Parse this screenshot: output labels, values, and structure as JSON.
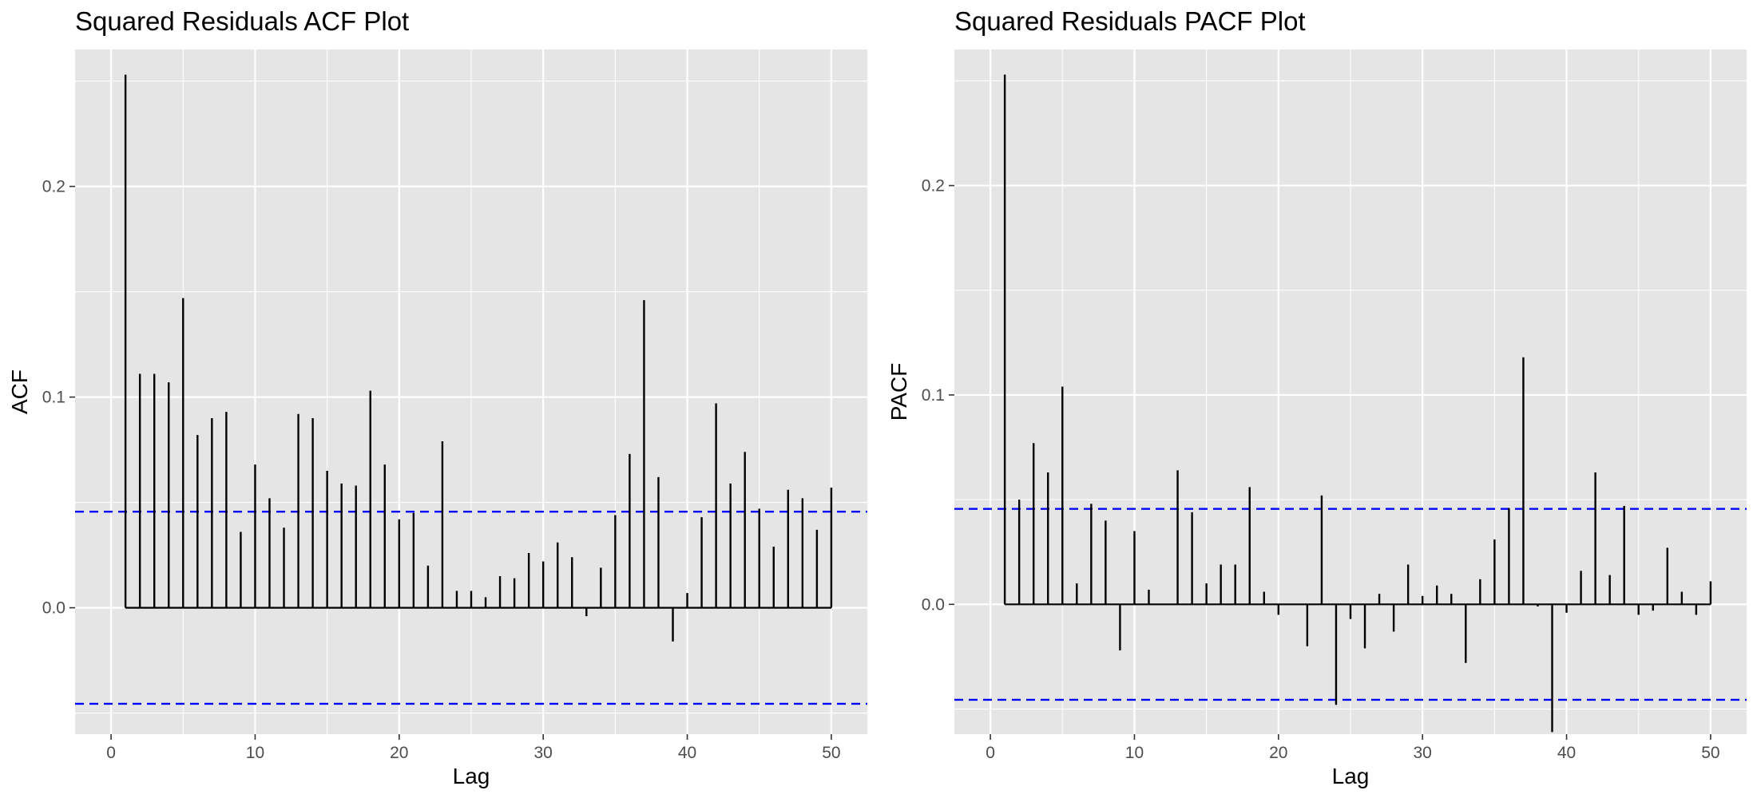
{
  "chart_data": [
    {
      "type": "bar",
      "title": "Squared Residuals ACF Plot",
      "xlabel": "Lag",
      "ylabel": "ACF",
      "xlim": [
        -2.5,
        52.5
      ],
      "ylim": [
        -0.06,
        0.265
      ],
      "xticks": [
        0,
        10,
        20,
        30,
        40,
        50
      ],
      "xtick_labels": [
        "0",
        "10",
        "20",
        "30",
        "40",
        "50"
      ],
      "yticks": [
        0.0,
        0.1,
        0.2
      ],
      "ytick_labels": [
        "0.0",
        "0.1",
        "0.2"
      ],
      "grid": true,
      "confidence_bound": 0.0456,
      "ci_color": "#0000ff",
      "bar_color": "#000000",
      "x": [
        1,
        2,
        3,
        4,
        5,
        6,
        7,
        8,
        9,
        10,
        11,
        12,
        13,
        14,
        15,
        16,
        17,
        18,
        19,
        20,
        21,
        22,
        23,
        24,
        25,
        26,
        27,
        28,
        29,
        30,
        31,
        32,
        33,
        34,
        35,
        36,
        37,
        38,
        39,
        40,
        41,
        42,
        43,
        44,
        45,
        46,
        47,
        48,
        49,
        50
      ],
      "values": [
        0.253,
        0.111,
        0.111,
        0.107,
        0.147,
        0.082,
        0.09,
        0.093,
        0.036,
        0.068,
        0.052,
        0.038,
        0.092,
        0.09,
        0.065,
        0.059,
        0.058,
        0.103,
        0.068,
        0.042,
        0.045,
        0.02,
        0.079,
        0.008,
        0.008,
        0.005,
        0.015,
        0.014,
        0.026,
        0.022,
        0.031,
        0.024,
        -0.004,
        0.019,
        0.044,
        0.073,
        0.146,
        0.062,
        -0.016,
        0.007,
        0.043,
        0.097,
        0.059,
        0.074,
        0.047,
        0.029,
        0.056,
        0.052,
        0.037,
        0.057
      ]
    },
    {
      "type": "bar",
      "title": "Squared Residuals PACF Plot",
      "xlabel": "Lag",
      "ylabel": "PACF",
      "xlim": [
        -2.5,
        52.5
      ],
      "ylim": [
        -0.062,
        0.265
      ],
      "xticks": [
        0,
        10,
        20,
        30,
        40,
        50
      ],
      "xtick_labels": [
        "0",
        "10",
        "20",
        "30",
        "40",
        "50"
      ],
      "yticks": [
        0.0,
        0.1,
        0.2
      ],
      "ytick_labels": [
        "0.0",
        "0.1",
        "0.2"
      ],
      "grid": true,
      "confidence_bound": 0.0456,
      "ci_color": "#0000ff",
      "bar_color": "#000000",
      "x": [
        1,
        2,
        3,
        4,
        5,
        6,
        7,
        8,
        9,
        10,
        11,
        12,
        13,
        14,
        15,
        16,
        17,
        18,
        19,
        20,
        21,
        22,
        23,
        24,
        25,
        26,
        27,
        28,
        29,
        30,
        31,
        32,
        33,
        34,
        35,
        36,
        37,
        38,
        39,
        40,
        41,
        42,
        43,
        44,
        45,
        46,
        47,
        48,
        49,
        50
      ],
      "values": [
        0.253,
        0.05,
        0.077,
        0.063,
        0.104,
        0.01,
        0.048,
        0.04,
        -0.022,
        0.035,
        0.007,
        0.0,
        0.064,
        0.044,
        0.01,
        0.019,
        0.019,
        0.056,
        0.006,
        -0.005,
        0.0,
        -0.02,
        0.052,
        -0.048,
        -0.007,
        -0.021,
        0.005,
        -0.013,
        0.019,
        0.004,
        0.009,
        0.005,
        -0.028,
        0.012,
        0.031,
        0.046,
        0.118,
        -0.001,
        -0.061,
        -0.004,
        0.016,
        0.063,
        0.014,
        0.047,
        -0.005,
        -0.003,
        0.027,
        0.006,
        -0.005,
        0.011
      ]
    }
  ]
}
